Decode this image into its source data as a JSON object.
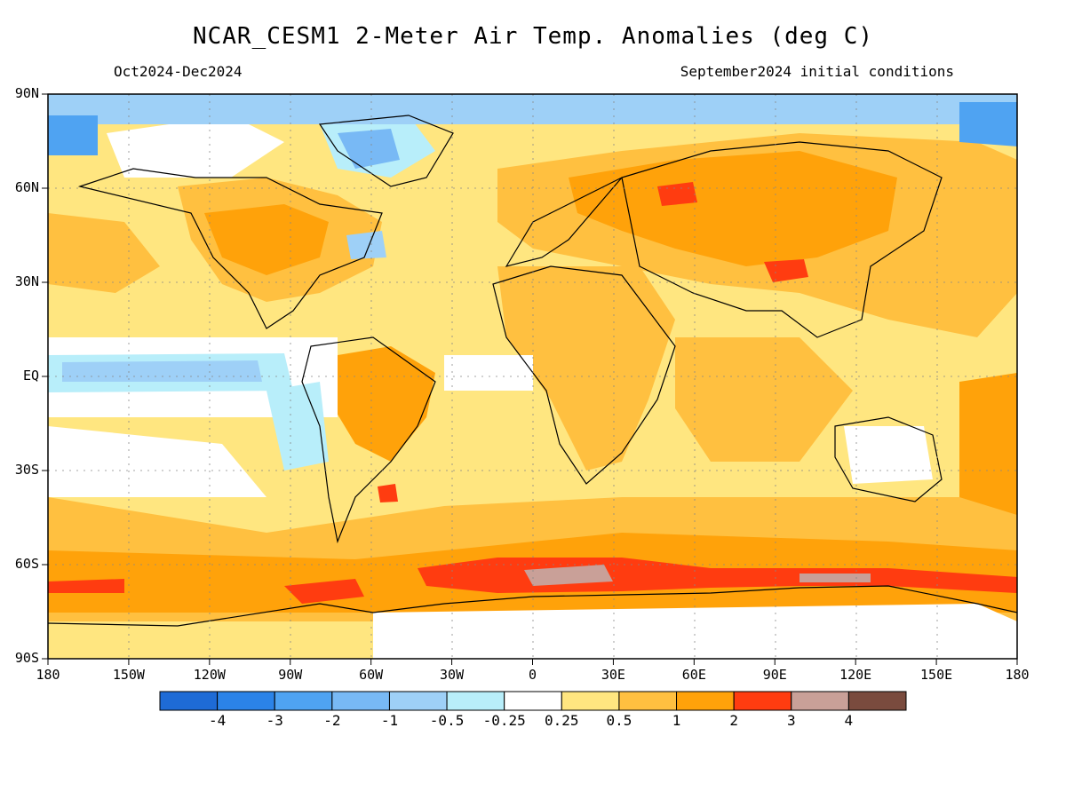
{
  "header": {
    "title": "NCAR_CESM1 2-Meter Air Temp. Anomalies (deg C)",
    "period": "Oct2024-Dec2024",
    "init": "September2024 initial conditions"
  },
  "axes": {
    "lat_labels": [
      "90N",
      "60N",
      "30N",
      "EQ",
      "30S",
      "60S",
      "90S"
    ],
    "lon_labels": [
      "180",
      "150W",
      "120W",
      "90W",
      "60W",
      "30W",
      "0",
      "30E",
      "60E",
      "90E",
      "120E",
      "150E",
      "180"
    ]
  },
  "colorbar": {
    "labels": [
      "-4",
      "-3",
      "-2",
      "-1",
      "-0.5",
      "-0.25",
      "0.25",
      "0.5",
      "1",
      "2",
      "3",
      "4"
    ],
    "colors": [
      "#1e6bd6",
      "#2b83e8",
      "#4fa3f2",
      "#78b9f5",
      "#9ed0f7",
      "#b8eefa",
      "#ffffff",
      "#ffe680",
      "#ffc040",
      "#ffa20a",
      "#ff3c10",
      "#c9a098",
      "#7a4b3e"
    ]
  },
  "map_colors": {
    "ocean_base": "#ffe680",
    "warm": "#ffc040",
    "warm2": "#ffa20a",
    "hot": "#ff3c10",
    "very_hot": "#c9a098",
    "neutral": "#ffffff",
    "cool": "#b8eefa",
    "cool2": "#9ed0f7",
    "cold": "#78b9f5",
    "colder": "#4fa3f2"
  }
}
